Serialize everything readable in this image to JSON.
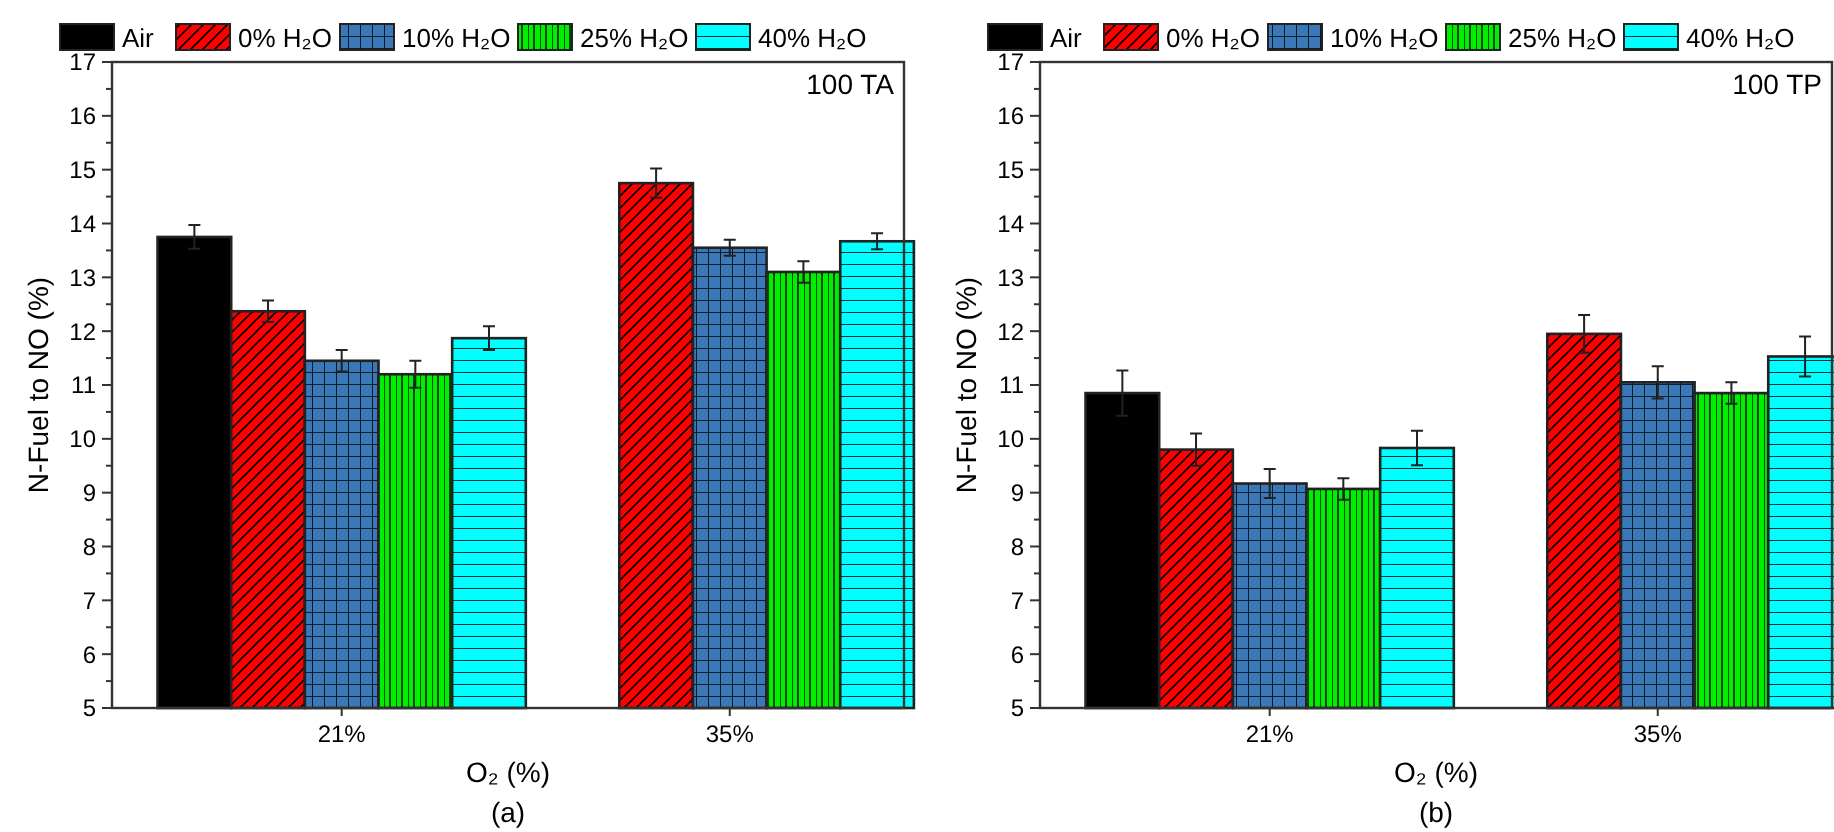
{
  "chart_data": [
    {
      "type": "bar",
      "xlabel": "O₂ (%)",
      "ylabel": "N-Fuel to NO (%)",
      "categories": [
        "21%",
        "35%"
      ],
      "ylim": [
        5,
        17
      ],
      "yticks": [
        5,
        {
          "value": 5.5,
          "label": null
        },
        6,
        {
          "value": 6.5,
          "label": null
        },
        7,
        {
          "value": 7.5,
          "label": null
        },
        8,
        {
          "value": 8.5,
          "label": null
        },
        9,
        {
          "value": 9.5,
          "label": null
        },
        10,
        {
          "value": 10.5,
          "label": null
        },
        11,
        {
          "value": 11.5,
          "label": null
        },
        12,
        {
          "value": 12.5,
          "label": null
        },
        13,
        {
          "value": 13.5,
          "label": null
        },
        14,
        {
          "value": 14.5,
          "label": null
        },
        15,
        {
          "value": 15.5,
          "label": null
        },
        16,
        {
          "value": 16.5,
          "label": null
        },
        17
      ],
      "grid": false,
      "legend": "top",
      "annotations": [
        "100 TA",
        "(a)"
      ],
      "series": [
        {
          "name": "Air",
          "color": "#000000",
          "values": [
            13.75,
            null
          ],
          "errors": [
            0.22,
            null
          ]
        },
        {
          "name": "0% H₂O",
          "color": "#ff0000",
          "values": [
            12.37,
            14.75
          ],
          "errors": [
            0.2,
            0.27
          ]
        },
        {
          "name": "10% H₂O",
          "color": "#3a78b8",
          "values": [
            11.45,
            13.55
          ],
          "errors": [
            0.2,
            0.15
          ]
        },
        {
          "name": "25% H₂O",
          "color": "#00ee00",
          "values": [
            11.2,
            13.1
          ],
          "errors": [
            0.25,
            0.2
          ]
        },
        {
          "name": "40% H₂O",
          "color": "#00ffff",
          "values": [
            11.87,
            13.67
          ],
          "errors": [
            0.22,
            0.15
          ]
        }
      ]
    },
    {
      "type": "bar",
      "xlabel": "O₂ (%)",
      "ylabel": "N-Fuel to NO (%)",
      "categories": [
        "21%",
        "35%"
      ],
      "ylim": [
        5,
        17
      ],
      "yticks": [
        5,
        {
          "value": 5.5,
          "label": null
        },
        6,
        {
          "value": 6.5,
          "label": null
        },
        7,
        {
          "value": 7.5,
          "label": null
        },
        8,
        {
          "value": 8.5,
          "label": null
        },
        9,
        {
          "value": 9.5,
          "label": null
        },
        10,
        {
          "value": 10.5,
          "label": null
        },
        11,
        {
          "value": 11.5,
          "label": null
        },
        12,
        {
          "value": 12.5,
          "label": null
        },
        13,
        {
          "value": 13.5,
          "label": null
        },
        14,
        {
          "value": 14.5,
          "label": null
        },
        15,
        {
          "value": 15.5,
          "label": null
        },
        16,
        {
          "value": 16.5,
          "label": null
        },
        17
      ],
      "grid": false,
      "legend": "top",
      "annotations": [
        "100 TP",
        "(b)"
      ],
      "series": [
        {
          "name": "Air",
          "color": "#000000",
          "values": [
            10.85,
            null
          ],
          "errors": [
            0.42,
            null
          ]
        },
        {
          "name": "0% H₂O",
          "color": "#ff0000",
          "values": [
            9.8,
            11.95
          ],
          "errors": [
            0.3,
            0.35
          ]
        },
        {
          "name": "10% H₂O",
          "color": "#3a78b8",
          "values": [
            9.17,
            11.05
          ],
          "errors": [
            0.27,
            0.3
          ]
        },
        {
          "name": "25% H₂O",
          "color": "#00ee00",
          "values": [
            9.07,
            10.85
          ],
          "errors": [
            0.2,
            0.2
          ]
        },
        {
          "name": "40% H₂O",
          "color": "#00ffff",
          "values": [
            9.83,
            11.53
          ],
          "errors": [
            0.32,
            0.37
          ]
        }
      ]
    }
  ]
}
